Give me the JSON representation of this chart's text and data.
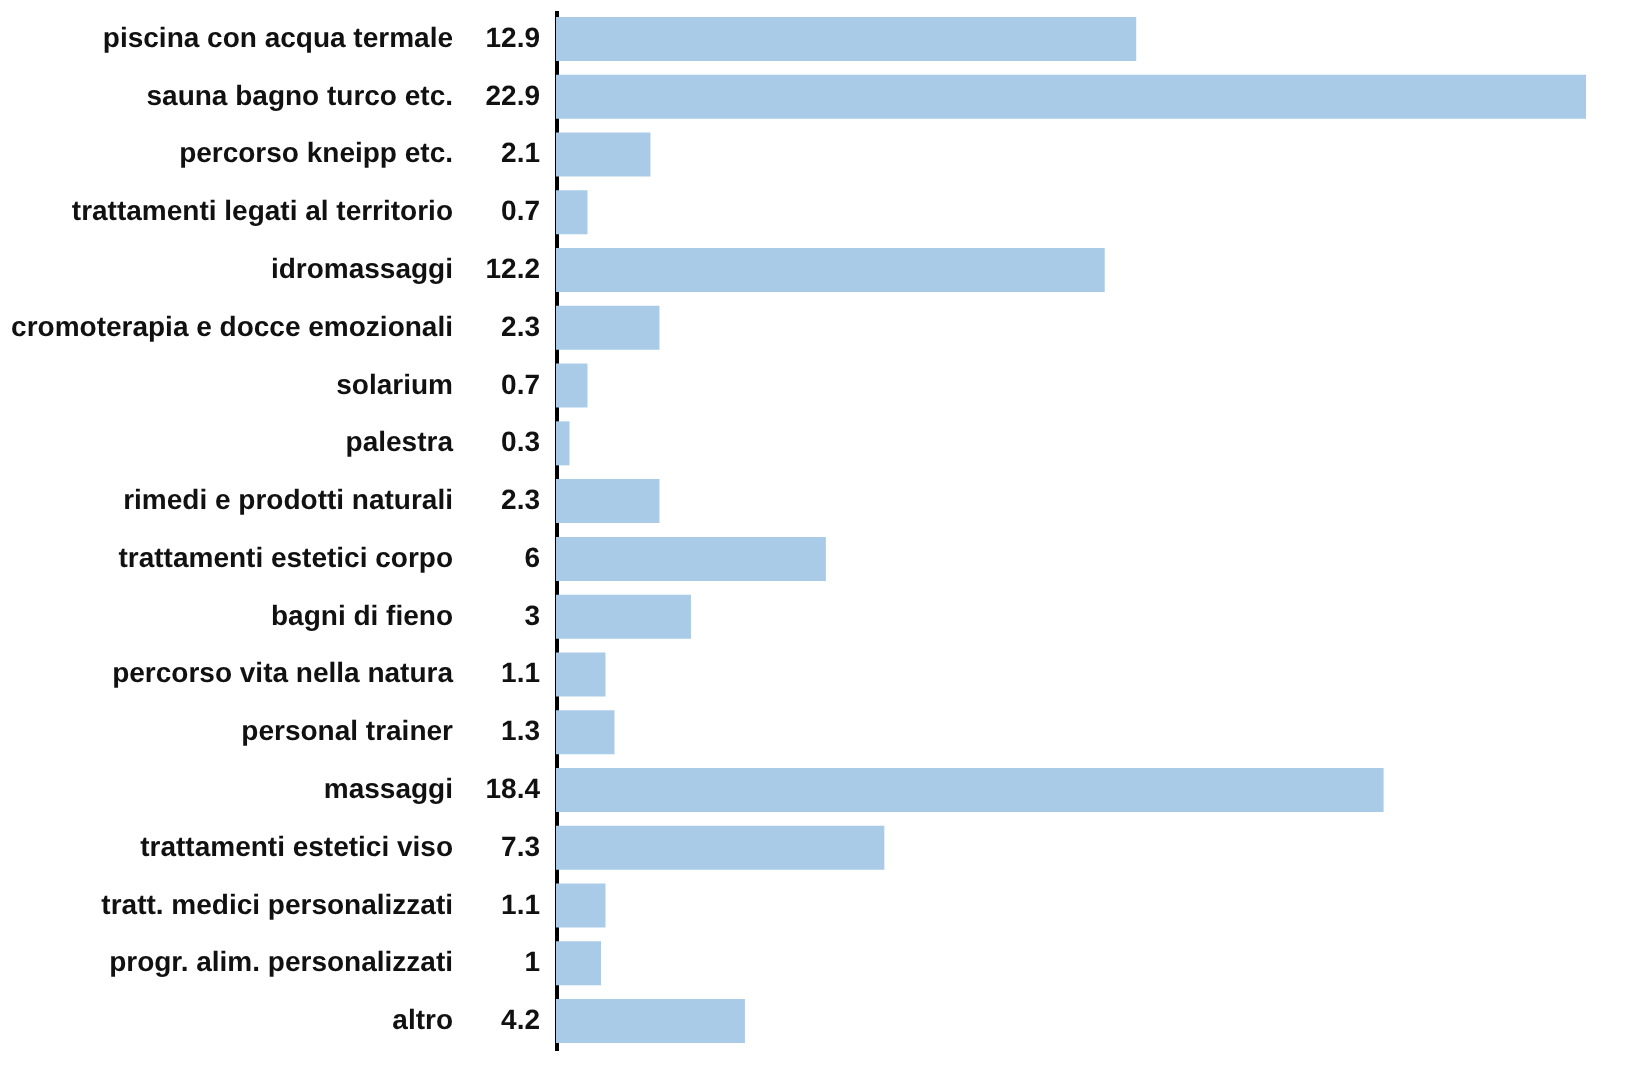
{
  "chart_data": {
    "type": "bar",
    "orientation": "horizontal",
    "data_labels": true,
    "grid": false,
    "tick_labels": "y",
    "categories": [
      "piscina con acqua termale",
      "sauna bagno turco etc.",
      "percorso kneipp etc.",
      "trattamenti legati al territorio",
      "idromassaggi",
      "cromoterapia e docce emozionali",
      "solarium",
      "palestra",
      "rimedi e prodotti naturali",
      "trattamenti estetici corpo",
      "bagni di fieno",
      "percorso vita nella natura",
      "personal trainer",
      "massaggi",
      "trattamenti estetici viso",
      "tratt. medici personalizzati",
      "progr. alim. personalizzati",
      "altro"
    ],
    "values": [
      12.9,
      22.9,
      2.1,
      0.7,
      12.2,
      2.3,
      0.7,
      0.3,
      2.3,
      6,
      3,
      1.1,
      1.3,
      18.4,
      7.3,
      1.1,
      1,
      4.2
    ],
    "color": "#a9cbe7"
  }
}
